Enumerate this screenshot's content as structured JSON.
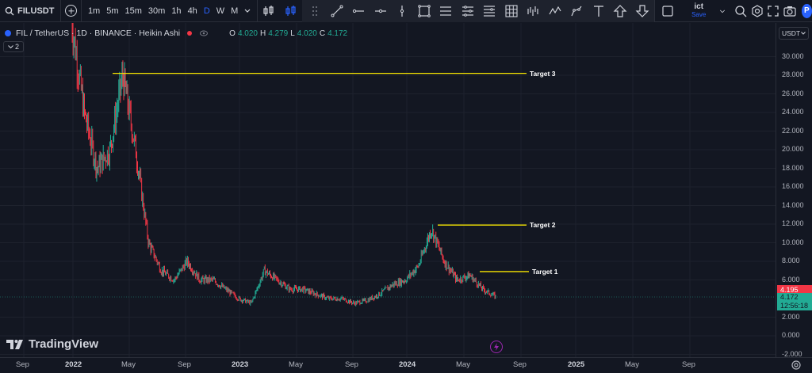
{
  "toolbar": {
    "symbol": "FILUSDT",
    "intervals": [
      "1m",
      "5m",
      "15m",
      "30m",
      "1h",
      "4h",
      "D",
      "W",
      "M"
    ],
    "active_interval": "D",
    "layout_name": "ict",
    "save_label": "Save",
    "profile_initial": "P"
  },
  "legend": {
    "title": "FIL / TetherUS · 1D · BINANCE · Heikin Ashi",
    "o_label": "O",
    "o_value": "4.020",
    "h_label": "H",
    "h_value": "4.279",
    "l_label": "L",
    "l_value": "4.020",
    "c_label": "C",
    "c_value": "4.172",
    "indicator_count": "2"
  },
  "price_axis": {
    "currency": "USDT",
    "ticks": [
      "30.000",
      "28.000",
      "26.000",
      "24.000",
      "22.000",
      "20.000",
      "18.000",
      "16.000",
      "14.000",
      "12.000",
      "10.000",
      "8.000",
      "6.000",
      "2.000",
      "0.000",
      "-2.000"
    ],
    "last_price_red": "4.195",
    "last_price_green": "4.172",
    "countdown": "12:56:18"
  },
  "time_axis": {
    "labels": [
      {
        "text": "Sep",
        "year": false
      },
      {
        "text": "2022",
        "year": true
      },
      {
        "text": "May",
        "year": false
      },
      {
        "text": "Sep",
        "year": false
      },
      {
        "text": "2023",
        "year": true
      },
      {
        "text": "May",
        "year": false
      },
      {
        "text": "Sep",
        "year": false
      },
      {
        "text": "2024",
        "year": true
      },
      {
        "text": "May",
        "year": false
      },
      {
        "text": "Sep",
        "year": false
      },
      {
        "text": "2025",
        "year": true
      },
      {
        "text": "May",
        "year": false
      },
      {
        "text": "Sep",
        "year": false
      }
    ]
  },
  "targets": [
    {
      "label": "Target 3",
      "price": 28.2
    },
    {
      "label": "Target 2",
      "price": 11.9
    },
    {
      "label": "Target 1",
      "price": 6.9
    }
  ],
  "watermark": "TradingView",
  "colors": {
    "up": "#22ab94",
    "down": "#f23645",
    "bg": "#131722",
    "target": "#f7e600",
    "accent": "#2962ff"
  },
  "chart_data": {
    "type": "line",
    "title": "FIL / TetherUS · 1D · BINANCE · Heikin Ashi",
    "ylim": [
      -2,
      32
    ],
    "x": [
      "2021-09",
      "2021-11",
      "2022-01",
      "2022-02",
      "2022-03",
      "2022-04",
      "2022-05",
      "2022-06",
      "2022-07",
      "2022-08",
      "2022-09",
      "2022-10",
      "2022-11",
      "2022-12",
      "2023-01",
      "2023-02",
      "2023-03",
      "2023-04",
      "2023-05",
      "2023-06",
      "2023-07",
      "2023-08",
      "2023-09",
      "2023-10",
      "2023-11",
      "2023-12",
      "2024-01",
      "2024-02",
      "2024-03",
      "2024-04",
      "2024-05",
      "2024-06",
      "2024-07",
      "2024-08"
    ],
    "series": [
      {
        "values": [
          34,
          24,
          18,
          20,
          28,
          20,
          10,
          7,
          6,
          8,
          6,
          6,
          5,
          4,
          3.5,
          7,
          6,
          5,
          5,
          4.5,
          4,
          4,
          3.5,
          3.8,
          4.5,
          5.5,
          6,
          7.5,
          11.5,
          8,
          6,
          6.5,
          5,
          4.2
        ]
      }
    ],
    "ticks": [
      "30.000",
      "28.000",
      "26.000",
      "24.000",
      "22.000",
      "20.000",
      "18.000",
      "16.000",
      "14.000",
      "12.000",
      "10.000",
      "8.000",
      "6.000",
      "2.000",
      "0.000",
      "-2.000"
    ],
    "grid": true,
    "legend": "top-left"
  }
}
